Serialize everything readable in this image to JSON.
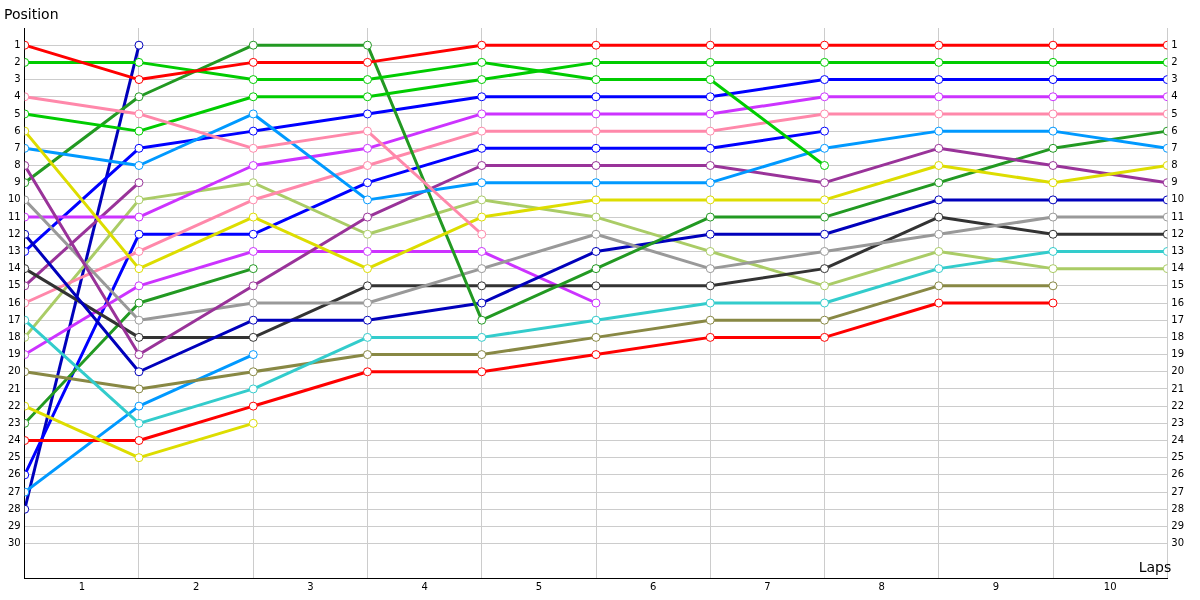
{
  "chart_data": {
    "type": "line",
    "xlabel": "Laps",
    "ylabel": "Position",
    "x": [
      0,
      1,
      2,
      3,
      4,
      5,
      6,
      7,
      8,
      9,
      10
    ],
    "xlim": [
      0,
      10
    ],
    "xticks": [
      {
        "value": 0.5,
        "label": "1"
      },
      {
        "value": 1,
        "label": null
      },
      {
        "value": 1.5,
        "label": "2"
      },
      {
        "value": 2,
        "label": null
      },
      {
        "value": 2.5,
        "label": "3"
      },
      {
        "value": 3,
        "label": null
      },
      {
        "value": 3.5,
        "label": "4"
      },
      {
        "value": 4,
        "label": null
      },
      {
        "value": 4.5,
        "label": "5"
      },
      {
        "value": 5,
        "label": null
      },
      {
        "value": 5.5,
        "label": "6"
      },
      {
        "value": 6,
        "label": null
      },
      {
        "value": 6.5,
        "label": "7"
      },
      {
        "value": 7,
        "label": null
      },
      {
        "value": 7.5,
        "label": "8"
      },
      {
        "value": 8,
        "label": null
      },
      {
        "value": 8.5,
        "label": "9"
      },
      {
        "value": 9,
        "label": null
      },
      {
        "value": 9.5,
        "label": "10"
      },
      {
        "value": 10,
        "label": null
      }
    ],
    "ylim": [
      32,
      0
    ],
    "yticks": [
      1,
      2,
      3,
      4,
      5,
      6,
      7,
      8,
      9,
      10,
      11,
      12,
      13,
      14,
      15,
      16,
      17,
      18,
      19,
      20,
      21,
      22,
      23,
      24,
      25,
      26,
      27,
      28,
      29,
      30
    ],
    "y2lim": [
      32,
      0
    ],
    "y2ticks": [
      1,
      2,
      3,
      4,
      5,
      6,
      7,
      8,
      9,
      10,
      11,
      12,
      13,
      14,
      15,
      16,
      17,
      18,
      19,
      20,
      21,
      22,
      23,
      24,
      25,
      26,
      27,
      28,
      29,
      30
    ],
    "grid": true,
    "legend": false,
    "marker": "circle",
    "line_style": "solid",
    "series": [
      {
        "color": "#ff0000",
        "values": [
          1,
          3,
          2,
          2,
          1,
          1,
          1,
          1,
          1,
          1,
          1
        ]
      },
      {
        "color": "#00cc00",
        "values": [
          2,
          2,
          3,
          3,
          2,
          3,
          3,
          8,
          null,
          null,
          null
        ]
      },
      {
        "color": "#ff88aa",
        "values": [
          4,
          5,
          7,
          6,
          12,
          null,
          null,
          null,
          null,
          null,
          null
        ]
      },
      {
        "color": "#00cc00",
        "values": [
          5,
          6,
          4,
          4,
          3,
          2,
          2,
          2,
          2,
          2,
          2
        ]
      },
      {
        "color": "#dddd00",
        "values": [
          6,
          14,
          11,
          14,
          11,
          10,
          10,
          10,
          8,
          9,
          8
        ]
      },
      {
        "color": "#0099ff",
        "values": [
          7,
          8,
          5,
          10,
          9,
          9,
          9,
          7,
          6,
          6,
          7
        ]
      },
      {
        "color": "#993399",
        "values": [
          8,
          19,
          15,
          11,
          8,
          8,
          8,
          9,
          7,
          8,
          9
        ]
      },
      {
        "color": "#229922",
        "values": [
          9,
          4,
          1,
          1,
          17,
          14,
          11,
          11,
          9,
          7,
          6
        ]
      },
      {
        "color": "#999999",
        "values": [
          10,
          17,
          16,
          16,
          14,
          12,
          14,
          13,
          12,
          11,
          11
        ]
      },
      {
        "color": "#cc33ff",
        "values": [
          11,
          11,
          8,
          7,
          5,
          5,
          5,
          4,
          4,
          4,
          4
        ]
      },
      {
        "color": "#0000bb",
        "values": [
          12,
          20,
          17,
          17,
          16,
          13,
          12,
          12,
          10,
          10,
          10
        ]
      },
      {
        "color": "#0000ff",
        "values": [
          13,
          7,
          6,
          5,
          4,
          4,
          4,
          3,
          3,
          3,
          3
        ]
      },
      {
        "color": "#333333",
        "values": [
          14,
          18,
          18,
          15,
          15,
          15,
          15,
          14,
          11,
          12,
          12
        ]
      },
      {
        "color": "#993399",
        "values": [
          15,
          9,
          null,
          null,
          null,
          null,
          null,
          null,
          null,
          null,
          null
        ]
      },
      {
        "color": "#ff88aa",
        "values": [
          16,
          13,
          10,
          8,
          6,
          6,
          6,
          5,
          5,
          5,
          5
        ]
      },
      {
        "color": "#33cccc",
        "values": [
          17,
          23,
          21,
          18,
          18,
          17,
          16,
          16,
          14,
          13,
          13
        ]
      },
      {
        "color": "#aacc66",
        "values": [
          18,
          10,
          9,
          12,
          10,
          11,
          13,
          15,
          13,
          14,
          14
        ]
      },
      {
        "color": "#cc33ff",
        "values": [
          19,
          15,
          13,
          13,
          13,
          16,
          null,
          null,
          null,
          null,
          null
        ]
      },
      {
        "color": "#888844",
        "values": [
          20,
          21,
          20,
          19,
          19,
          18,
          17,
          17,
          15,
          15,
          null
        ]
      },
      {
        "color": "#dddd00",
        "values": [
          22,
          25,
          23,
          null,
          null,
          null,
          null,
          null,
          null,
          null,
          null
        ]
      },
      {
        "color": "#229922",
        "values": [
          23,
          16,
          14,
          null,
          null,
          null,
          null,
          null,
          null,
          null,
          null
        ]
      },
      {
        "color": "#ff0000",
        "values": [
          24,
          24,
          22,
          20,
          20,
          19,
          18,
          18,
          16,
          16,
          null
        ]
      },
      {
        "color": "#0000ff",
        "values": [
          26,
          12,
          12,
          9,
          7,
          7,
          7,
          6,
          null,
          null,
          null
        ]
      },
      {
        "color": "#0099ff",
        "values": [
          27,
          22,
          19,
          null,
          null,
          null,
          null,
          null,
          null,
          null,
          null
        ]
      },
      {
        "color": "#0000bb",
        "values": [
          28,
          1,
          null,
          null,
          null,
          null,
          null,
          null,
          null,
          null,
          null
        ]
      }
    ]
  }
}
